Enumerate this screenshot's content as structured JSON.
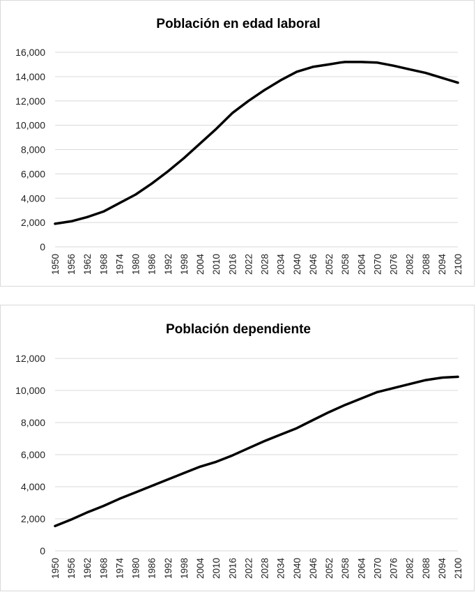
{
  "chart_data": [
    {
      "type": "line",
      "title": "Población en edad laboral",
      "xlabel": "",
      "ylabel": "",
      "ylim": [
        0,
        16000
      ],
      "yticks": [
        0,
        2000,
        4000,
        6000,
        8000,
        10000,
        12000,
        14000,
        16000
      ],
      "ytick_labels": [
        "0",
        "2,000",
        "4,000",
        "6,000",
        "8,000",
        "10,000",
        "12,000",
        "14,000",
        "16,000"
      ],
      "xlim": [
        1950,
        2100
      ],
      "xticks": [
        "1950",
        "1956",
        "1962",
        "1968",
        "1974",
        "1980",
        "1986",
        "1992",
        "1998",
        "2004",
        "2010",
        "2016",
        "2022",
        "2028",
        "2034",
        "2040",
        "2046",
        "2052",
        "2058",
        "2064",
        "2070",
        "2076",
        "2082",
        "2088",
        "2094",
        "2100"
      ],
      "series": [
        {
          "name": "Población en edad laboral",
          "x": [
            1950,
            1956,
            1962,
            1968,
            1974,
            1980,
            1986,
            1992,
            1998,
            2004,
            2010,
            2016,
            2022,
            2028,
            2034,
            2040,
            2046,
            2052,
            2056,
            2058,
            2064,
            2070,
            2076,
            2082,
            2088,
            2094,
            2100
          ],
          "values": [
            1900,
            2100,
            2450,
            2900,
            3600,
            4300,
            5200,
            6200,
            7300,
            8500,
            9700,
            11000,
            12000,
            12900,
            13700,
            14400,
            14800,
            15000,
            15150,
            15200,
            15200,
            15150,
            14900,
            14600,
            14300,
            13900,
            13500
          ]
        }
      ]
    },
    {
      "type": "line",
      "title": "Población dependiente",
      "xlabel": "",
      "ylabel": "",
      "ylim": [
        0,
        12000
      ],
      "yticks": [
        0,
        2000,
        4000,
        6000,
        8000,
        10000,
        12000
      ],
      "ytick_labels": [
        "0",
        "2,000",
        "4,000",
        "6,000",
        "8,000",
        "10,000",
        "12,000"
      ],
      "xlim": [
        1950,
        2100
      ],
      "xticks": [
        "1950",
        "1956",
        "1962",
        "1968",
        "1974",
        "1980",
        "1986",
        "1992",
        "1998",
        "2004",
        "2010",
        "2016",
        "2022",
        "2028",
        "2034",
        "2040",
        "2046",
        "2052",
        "2058",
        "2064",
        "2070",
        "2076",
        "2082",
        "2088",
        "2094",
        "2100"
      ],
      "series": [
        {
          "name": "Población dependiente",
          "x": [
            1950,
            1956,
            1962,
            1968,
            1974,
            1980,
            1986,
            1992,
            1998,
            2004,
            2010,
            2016,
            2022,
            2028,
            2034,
            2040,
            2046,
            2052,
            2058,
            2064,
            2070,
            2076,
            2082,
            2088,
            2094,
            2100
          ],
          "values": [
            1550,
            1950,
            2400,
            2800,
            3250,
            3650,
            4050,
            4450,
            4850,
            5250,
            5550,
            5950,
            6400,
            6850,
            7250,
            7650,
            8150,
            8650,
            9100,
            9500,
            9900,
            10150,
            10400,
            10650,
            10800,
            10850
          ]
        }
      ]
    }
  ]
}
